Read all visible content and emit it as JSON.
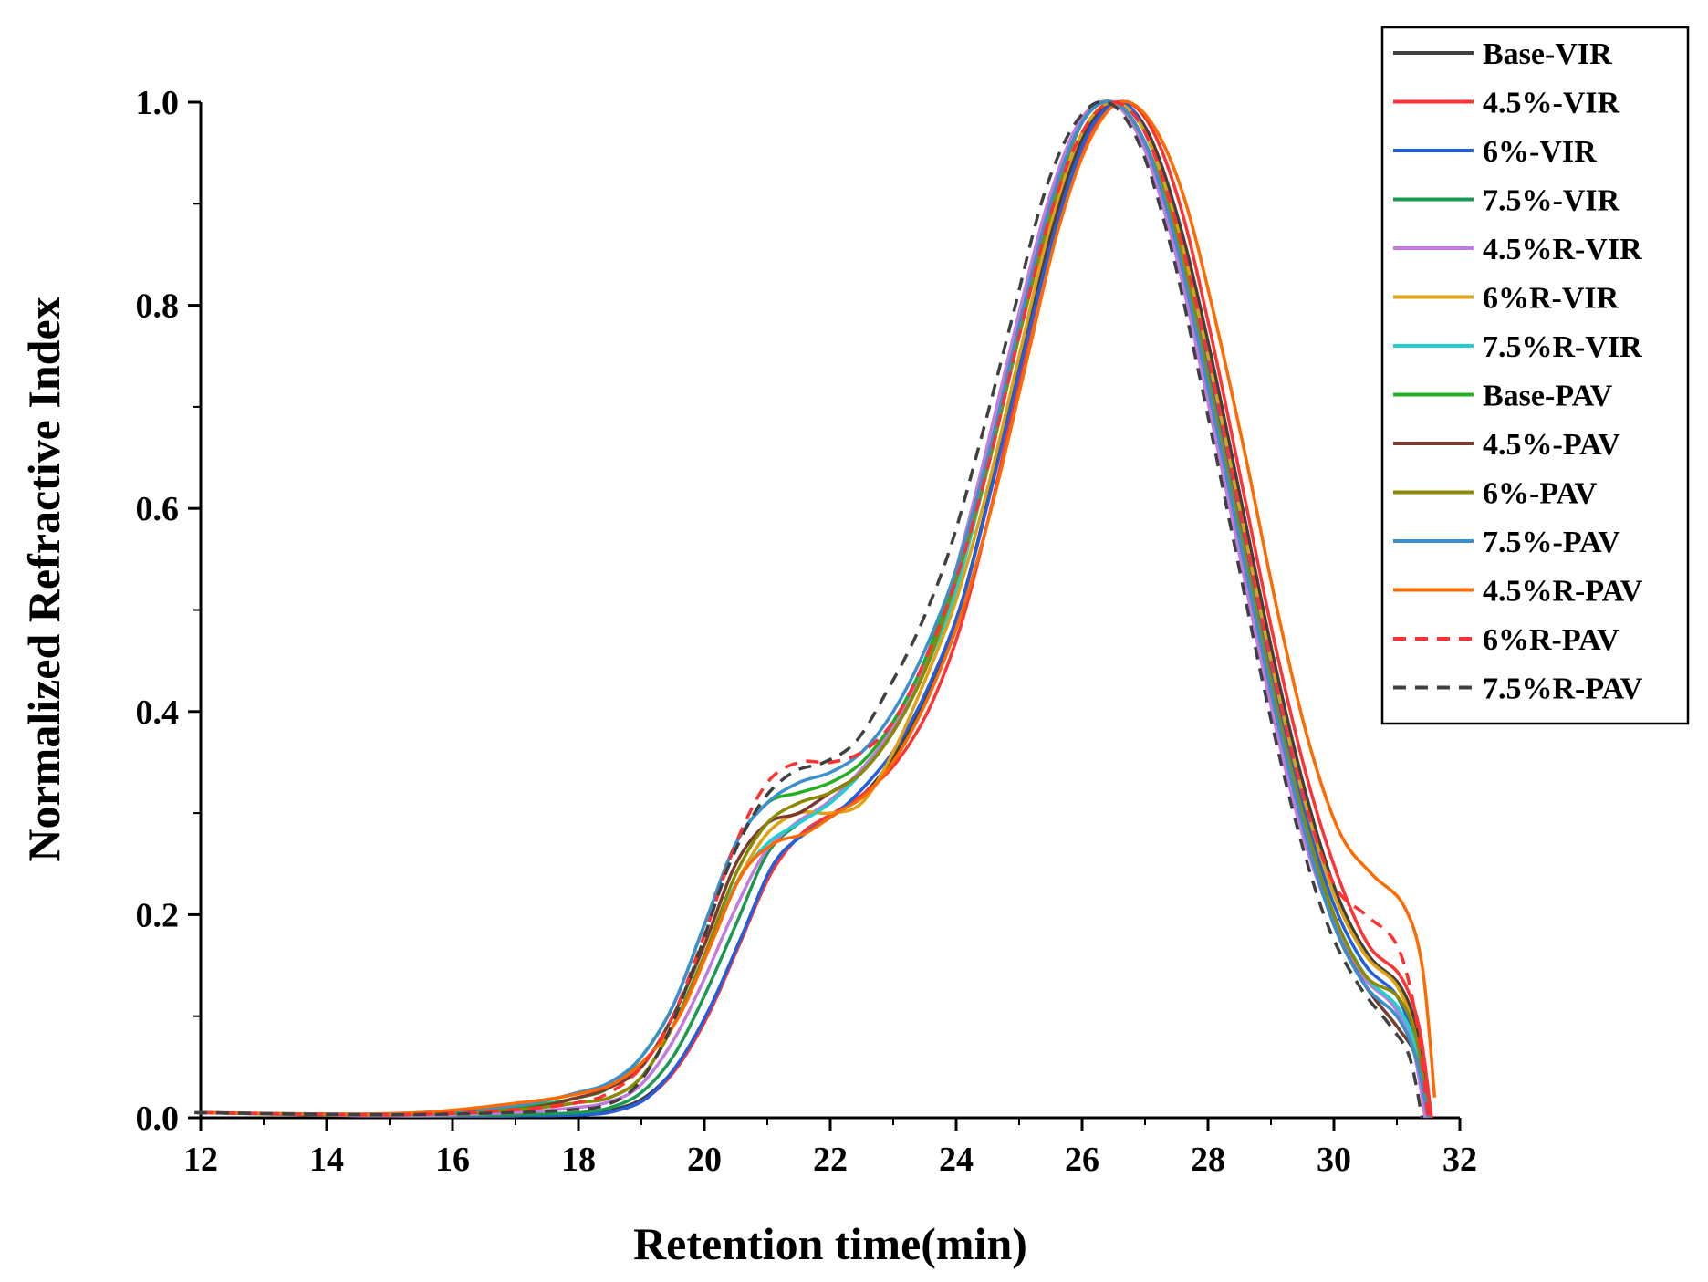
{
  "chart_data": {
    "type": "line",
    "title": "",
    "xlabel": "Retention time(min)",
    "ylabel": "Normalized Refractive Index",
    "xlim": [
      12,
      32
    ],
    "ylim": [
      0,
      1.0
    ],
    "xticks": [
      "12",
      "14",
      "16",
      "18",
      "20",
      "22",
      "24",
      "26",
      "28",
      "30",
      "32"
    ],
    "yticks": [
      "0.0",
      "0.2",
      "0.4",
      "0.6",
      "0.8",
      "1.0"
    ],
    "legend_position": "top-right",
    "x": [
      12,
      15,
      17,
      18,
      18.5,
      19,
      19.5,
      20,
      20.5,
      21,
      21.5,
      22,
      22.5,
      23,
      23.5,
      24,
      24.5,
      25,
      25.5,
      26,
      26.5,
      27,
      27.5,
      28,
      28.5,
      29,
      29.5,
      30,
      30.5,
      31,
      31.3,
      31.5
    ],
    "series": [
      {
        "name": "Base-VIR",
        "color": "#404040",
        "dash": false,
        "shift": 0.05,
        "offset": 0.05,
        "values": [
          0.005,
          0.002,
          0.002,
          0.003,
          0.008,
          0.02,
          0.05,
          0.1,
          0.17,
          0.24,
          0.28,
          0.3,
          0.32,
          0.36,
          0.42,
          0.5,
          0.62,
          0.75,
          0.88,
          0.97,
          1.0,
          0.97,
          0.88,
          0.75,
          0.6,
          0.45,
          0.32,
          0.22,
          0.16,
          0.13,
          0.08,
          0.0
        ]
      },
      {
        "name": "4.5%-VIR",
        "color": "#ff3333",
        "dash": false,
        "shift": 0.05,
        "offset": 0.05,
        "values": [
          0.005,
          0.002,
          0.002,
          0.003,
          0.006,
          0.018,
          0.048,
          0.1,
          0.17,
          0.24,
          0.28,
          0.3,
          0.32,
          0.35,
          0.4,
          0.48,
          0.6,
          0.74,
          0.87,
          0.96,
          1.0,
          0.98,
          0.9,
          0.77,
          0.62,
          0.47,
          0.34,
          0.24,
          0.17,
          0.14,
          0.09,
          0.0
        ]
      },
      {
        "name": "6%-VIR",
        "color": "#1f5fe0",
        "dash": false,
        "shift": 0.1,
        "offset": 0.0,
        "values": [
          0.005,
          0.002,
          0.002,
          0.003,
          0.007,
          0.02,
          0.055,
          0.11,
          0.18,
          0.25,
          0.28,
          0.3,
          0.33,
          0.37,
          0.43,
          0.51,
          0.63,
          0.76,
          0.88,
          0.97,
          1.0,
          0.97,
          0.88,
          0.74,
          0.59,
          0.44,
          0.31,
          0.21,
          0.15,
          0.12,
          0.07,
          0.0
        ]
      },
      {
        "name": "7.5%-VIR",
        "color": "#1a9950",
        "dash": false,
        "shift": 0.0,
        "offset": 0.0,
        "values": [
          0.005,
          0.002,
          0.003,
          0.005,
          0.01,
          0.025,
          0.06,
          0.12,
          0.19,
          0.26,
          0.29,
          0.31,
          0.34,
          0.38,
          0.44,
          0.52,
          0.64,
          0.77,
          0.89,
          0.98,
          1.0,
          0.96,
          0.87,
          0.73,
          0.58,
          0.43,
          0.3,
          0.2,
          0.14,
          0.11,
          0.07,
          0.0
        ]
      },
      {
        "name": "4.5%R-VIR",
        "color": "#c27ae0",
        "dash": false,
        "shift": -0.05,
        "offset": -0.05,
        "values": [
          0.005,
          0.002,
          0.005,
          0.01,
          0.015,
          0.03,
          0.07,
          0.13,
          0.2,
          0.26,
          0.29,
          0.31,
          0.34,
          0.38,
          0.44,
          0.53,
          0.65,
          0.78,
          0.9,
          0.98,
          1.0,
          0.96,
          0.86,
          0.72,
          0.57,
          0.42,
          0.29,
          0.2,
          0.14,
          0.11,
          0.07,
          0.0
        ]
      },
      {
        "name": "6%R-VIR",
        "color": "#e0a010",
        "dash": false,
        "shift": 0.0,
        "offset": 0.0,
        "values": [
          0.005,
          0.003,
          0.008,
          0.015,
          0.02,
          0.04,
          0.09,
          0.16,
          0.23,
          0.28,
          0.3,
          0.3,
          0.31,
          0.36,
          0.43,
          0.51,
          0.62,
          0.75,
          0.88,
          0.97,
          1.0,
          0.97,
          0.88,
          0.75,
          0.6,
          0.45,
          0.32,
          0.22,
          0.16,
          0.13,
          0.08,
          0.0
        ]
      },
      {
        "name": "7.5%R-VIR",
        "color": "#20d0d0",
        "dash": false,
        "shift": 0.0,
        "offset": 0.0,
        "values": [
          0.005,
          0.003,
          0.008,
          0.015,
          0.02,
          0.04,
          0.09,
          0.16,
          0.23,
          0.27,
          0.29,
          0.31,
          0.34,
          0.38,
          0.44,
          0.52,
          0.64,
          0.77,
          0.89,
          0.98,
          1.0,
          0.96,
          0.87,
          0.73,
          0.58,
          0.43,
          0.3,
          0.2,
          0.14,
          0.11,
          0.07,
          0.0
        ]
      },
      {
        "name": "Base-PAV",
        "color": "#22b022",
        "dash": false,
        "shift": 0.0,
        "offset": 0.0,
        "values": [
          0.005,
          0.003,
          0.01,
          0.02,
          0.03,
          0.06,
          0.11,
          0.19,
          0.27,
          0.31,
          0.32,
          0.33,
          0.35,
          0.39,
          0.45,
          0.54,
          0.65,
          0.78,
          0.9,
          0.98,
          1.0,
          0.96,
          0.86,
          0.72,
          0.57,
          0.42,
          0.29,
          0.19,
          0.13,
          0.1,
          0.06,
          0.0
        ]
      },
      {
        "name": "4.5%-PAV",
        "color": "#7a3a30",
        "dash": false,
        "shift": 0.0,
        "offset": 0.0,
        "values": [
          0.005,
          0.003,
          0.008,
          0.02,
          0.03,
          0.05,
          0.1,
          0.17,
          0.25,
          0.29,
          0.3,
          0.32,
          0.34,
          0.38,
          0.44,
          0.53,
          0.64,
          0.77,
          0.89,
          0.98,
          1.0,
          0.96,
          0.86,
          0.72,
          0.57,
          0.42,
          0.29,
          0.19,
          0.13,
          0.09,
          0.06,
          0.0
        ]
      },
      {
        "name": "6%-PAV",
        "color": "#8a8a00",
        "dash": false,
        "shift": 0.0,
        "offset": 0.0,
        "values": [
          0.005,
          0.003,
          0.008,
          0.015,
          0.02,
          0.04,
          0.09,
          0.16,
          0.24,
          0.29,
          0.31,
          0.32,
          0.34,
          0.38,
          0.44,
          0.53,
          0.64,
          0.77,
          0.89,
          0.98,
          1.0,
          0.96,
          0.87,
          0.73,
          0.58,
          0.43,
          0.3,
          0.2,
          0.14,
          0.12,
          0.08,
          0.0
        ]
      },
      {
        "name": "7.5%-PAV",
        "color": "#3a8fd0",
        "dash": false,
        "shift": 0.0,
        "offset": 0.0,
        "values": [
          0.005,
          0.004,
          0.012,
          0.025,
          0.035,
          0.06,
          0.11,
          0.19,
          0.27,
          0.31,
          0.33,
          0.34,
          0.36,
          0.4,
          0.46,
          0.54,
          0.65,
          0.78,
          0.9,
          0.98,
          1.0,
          0.96,
          0.86,
          0.72,
          0.57,
          0.42,
          0.29,
          0.19,
          0.13,
          0.1,
          0.06,
          0.0
        ]
      },
      {
        "name": "4.5%R-PAV",
        "color": "#ff6a00",
        "dash": false,
        "shift": 0.1,
        "offset": 0.1,
        "values": [
          0.005,
          0.004,
          0.015,
          0.025,
          0.035,
          0.06,
          0.1,
          0.17,
          0.24,
          0.27,
          0.28,
          0.3,
          0.32,
          0.36,
          0.42,
          0.5,
          0.61,
          0.74,
          0.87,
          0.96,
          1.0,
          0.98,
          0.91,
          0.79,
          0.65,
          0.5,
          0.37,
          0.28,
          0.24,
          0.21,
          0.15,
          0.02
        ]
      },
      {
        "name": "6%R-PAV",
        "color": "#ff3030",
        "dash": true,
        "shift": 0.0,
        "offset": 0.0,
        "values": [
          0.005,
          0.003,
          0.008,
          0.015,
          0.025,
          0.05,
          0.1,
          0.18,
          0.27,
          0.33,
          0.35,
          0.35,
          0.36,
          0.39,
          0.45,
          0.53,
          0.64,
          0.77,
          0.89,
          0.97,
          1.0,
          0.97,
          0.88,
          0.75,
          0.6,
          0.45,
          0.32,
          0.23,
          0.2,
          0.17,
          0.1,
          0.0
        ]
      },
      {
        "name": "7.5%R-PAV",
        "color": "#404040",
        "dash": true,
        "shift": -0.1,
        "offset": -0.1,
        "values": [
          0.005,
          0.003,
          0.005,
          0.008,
          0.012,
          0.03,
          0.08,
          0.16,
          0.25,
          0.31,
          0.34,
          0.35,
          0.37,
          0.42,
          0.48,
          0.56,
          0.67,
          0.79,
          0.91,
          0.98,
          1.0,
          0.96,
          0.86,
          0.72,
          0.57,
          0.42,
          0.29,
          0.19,
          0.13,
          0.09,
          0.06,
          0.0
        ]
      }
    ]
  }
}
